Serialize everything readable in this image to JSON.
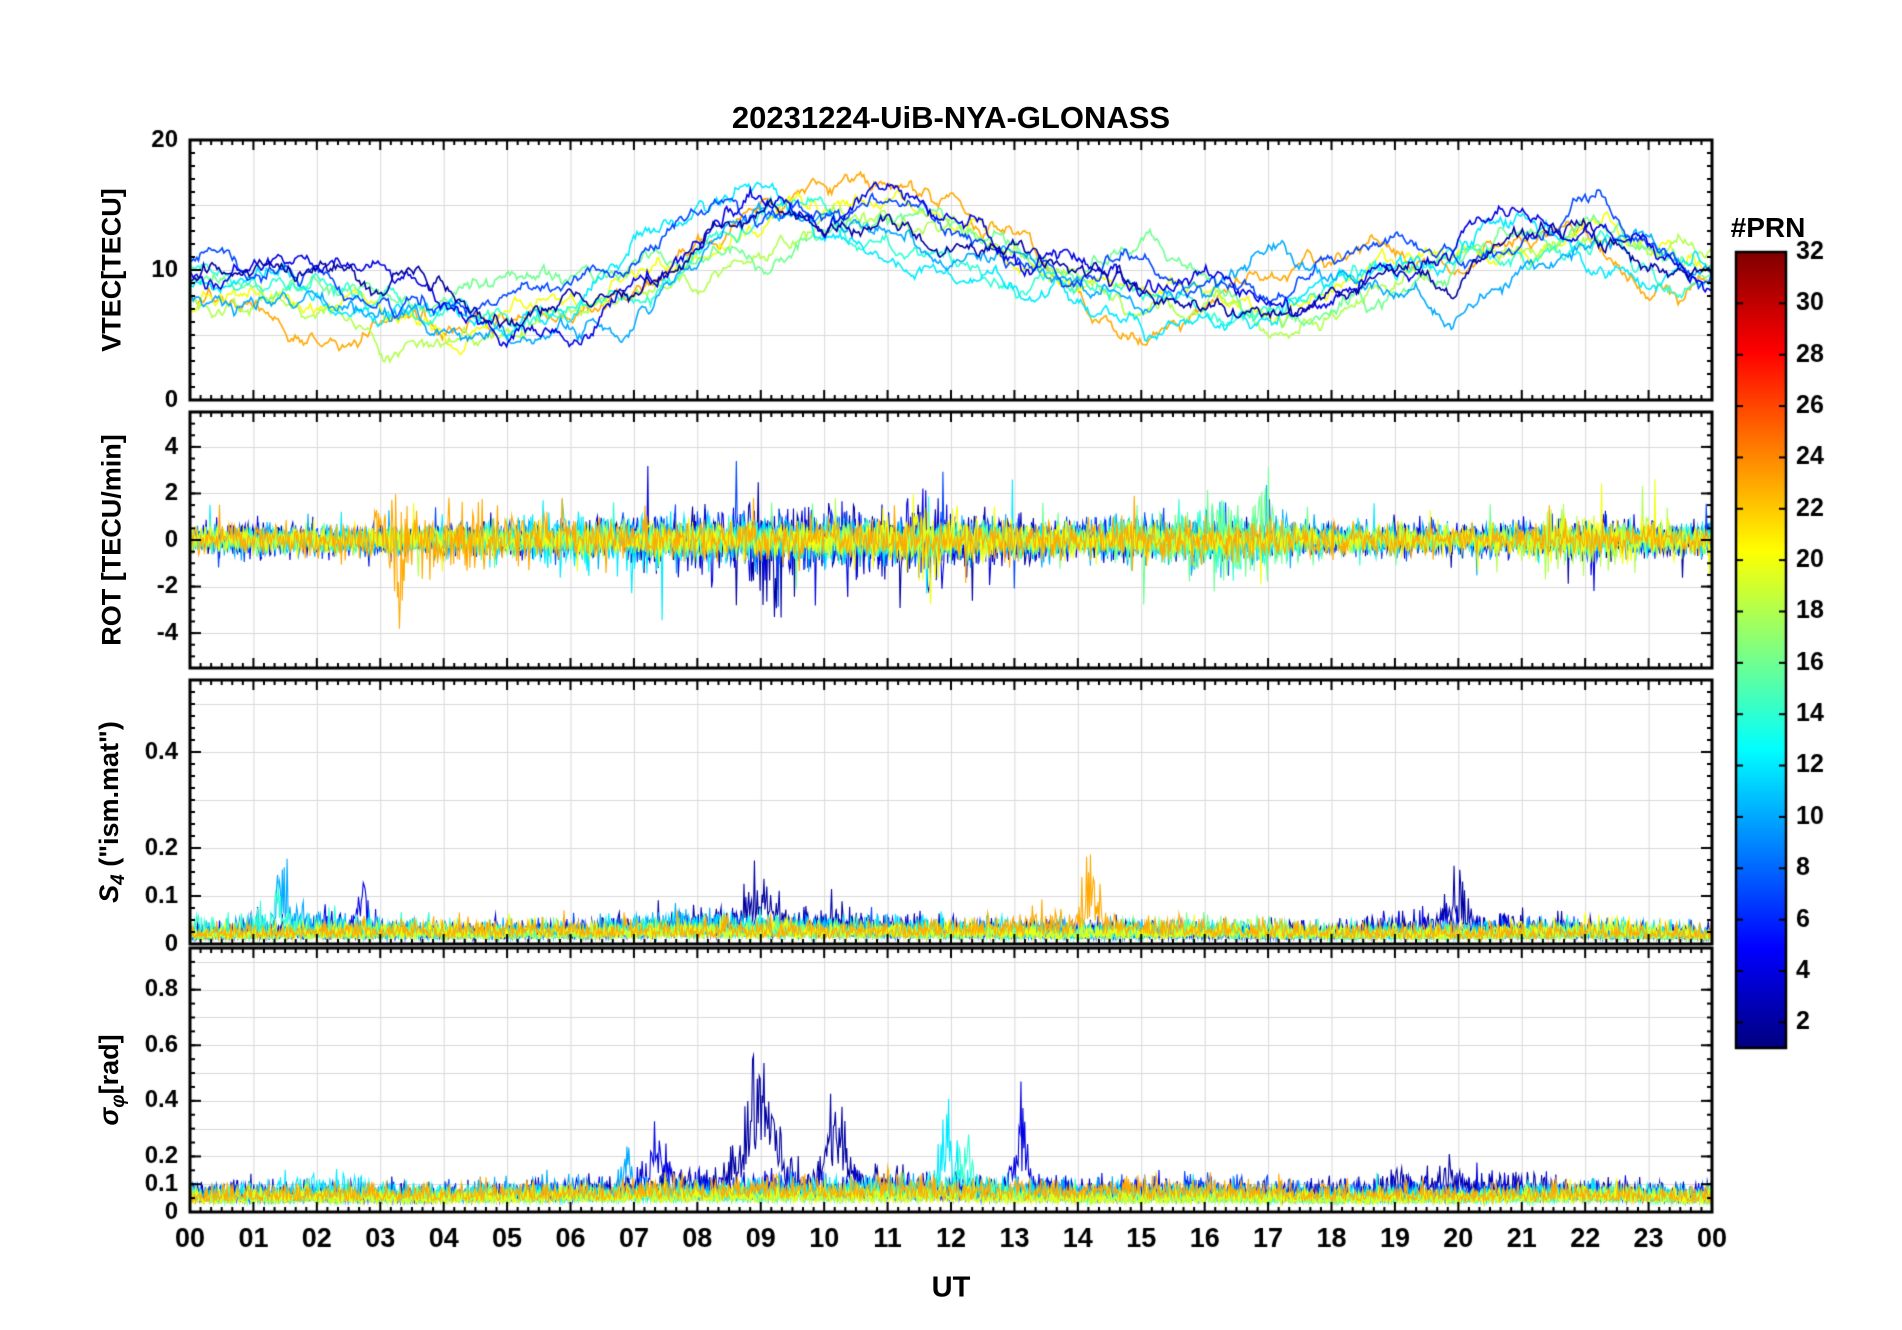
{
  "title": "20231224-UiB-NYA-GLONASS",
  "xlabel": "UT",
  "x_ticks": [
    "00",
    "01",
    "02",
    "03",
    "04",
    "05",
    "06",
    "07",
    "08",
    "09",
    "10",
    "11",
    "12",
    "13",
    "14",
    "15",
    "16",
    "17",
    "18",
    "19",
    "20",
    "21",
    "22",
    "23",
    "00"
  ],
  "colors": {
    "axis": "#000000",
    "grid": "#d9d9d9",
    "background": "#ffffff"
  },
  "colorbar": {
    "title": "#PRN",
    "min": 1,
    "max": 32,
    "ticks": [
      2,
      4,
      6,
      8,
      10,
      12,
      14,
      16,
      18,
      20,
      22,
      24,
      26,
      28,
      30,
      32
    ],
    "colormap": "jet"
  },
  "chart_data": [
    {
      "type": "line",
      "ylabel": "VTEC[TECU]",
      "ylim": [
        0,
        20
      ],
      "yticks": [
        0,
        10,
        20
      ],
      "ygrid": [
        5,
        10,
        15
      ],
      "yminor": 1,
      "style": {
        "kind": "vtec",
        "lw": 1.6,
        "order": "desc"
      },
      "x_hours_step": 1,
      "series": [
        {
          "prn": 2,
          "values": [
            9.5,
            10,
            8.5,
            7,
            6.5,
            6,
            7,
            8.5,
            12,
            14,
            13,
            15.5,
            13,
            11,
            9,
            8,
            7,
            6,
            7.5,
            9.5,
            10.5,
            12.5,
            14,
            10.5,
            9
          ]
        },
        {
          "prn": 4,
          "values": [
            10,
            11,
            10,
            8,
            7,
            6.5,
            7,
            9,
            13,
            15,
            14,
            18.5,
            15,
            12,
            10,
            9,
            8,
            7,
            8,
            10,
            12,
            15,
            16,
            12,
            10
          ]
        },
        {
          "prn": 7,
          "values": [
            11,
            9.5,
            8.5,
            7,
            6.5,
            6,
            8,
            10,
            14,
            13,
            15,
            14,
            12,
            10.5,
            9,
            8,
            7,
            6.5,
            8,
            10,
            11,
            13,
            15,
            11,
            9.5
          ]
        },
        {
          "prn": 10,
          "values": [
            8,
            7.5,
            7,
            6,
            5,
            4.5,
            6,
            9,
            12,
            14,
            13,
            12,
            11,
            9,
            8,
            7,
            9,
            11,
            10,
            9,
            8,
            10,
            12,
            10,
            9
          ]
        },
        {
          "prn": 12,
          "values": [
            9,
            8,
            7,
            6,
            5.5,
            5,
            7,
            10,
            13,
            15,
            12,
            11,
            10,
            8,
            7,
            6,
            5,
            7,
            9,
            10,
            11,
            13,
            11,
            10,
            10
          ]
        },
        {
          "prn": 14,
          "values": [
            10,
            9,
            8,
            7,
            6,
            6,
            7,
            9,
            11,
            12,
            13,
            11,
            9.5,
            8,
            7,
            6,
            5.5,
            6,
            8,
            9,
            10,
            11,
            12,
            10,
            9
          ]
        },
        {
          "prn": 16,
          "values": [
            9,
            8,
            9,
            7,
            6.5,
            7,
            8,
            9,
            10,
            11,
            12,
            13,
            11,
            9,
            8,
            10,
            7,
            5,
            6,
            8,
            9,
            10,
            11,
            9,
            8.5
          ]
        },
        {
          "prn": 18,
          "values": [
            8,
            7.5,
            7,
            6,
            6,
            7,
            8,
            9,
            10,
            12,
            14,
            13,
            12,
            10,
            9,
            8,
            7,
            6,
            7,
            9,
            10,
            11,
            13,
            11,
            9
          ]
        },
        {
          "prn": 20,
          "values": [
            7,
            6.5,
            6,
            5.5,
            5,
            6,
            7,
            8,
            10,
            13,
            15,
            16,
            13,
            11,
            9,
            8,
            7,
            5,
            6,
            8,
            9,
            10,
            13,
            12,
            9
          ]
        },
        {
          "prn": 23,
          "values": [
            8,
            7,
            6,
            5,
            4.5,
            5,
            6,
            8,
            11,
            13,
            14,
            15,
            12,
            9,
            6,
            5,
            7,
            8,
            9,
            10,
            11,
            12,
            13,
            10,
            9
          ]
        }
      ]
    },
    {
      "type": "line",
      "ylabel": "ROT [TECU/min]",
      "ylim": [
        -5.5,
        5.5
      ],
      "yticks": [
        -4,
        -2,
        0,
        2,
        4
      ],
      "ygrid": [
        -4,
        -2,
        0,
        2,
        4
      ],
      "yminor": 0.5,
      "style": {
        "kind": "noise",
        "lw": 1.1,
        "order": "asc",
        "gain": 0.7,
        "tail": 2.3,
        "tailmul": 2.8
      },
      "x_hours_step": 2,
      "series": [
        {
          "prn": 2,
          "env": [
            0.5,
            0.45,
            0.4,
            0.5,
            0.9,
            1.0,
            0.9,
            0.6,
            0.55,
            0.45,
            0.4,
            0.55,
            0.5
          ],
          "events": [
            {
              "x": 9.2,
              "w": 0.3,
              "a": 1.0
            }
          ]
        },
        {
          "prn": 4,
          "env": [
            0.55,
            0.5,
            0.45,
            0.55,
            1.0,
            1.2,
            0.9,
            0.6,
            0.5,
            0.45,
            0.5,
            0.6,
            0.55
          ],
          "events": [
            {
              "x": 11.6,
              "w": 0.2,
              "a": 1.2
            }
          ]
        },
        {
          "prn": 7,
          "env": [
            0.5,
            0.45,
            0.5,
            0.6,
            0.8,
            0.9,
            0.8,
            0.6,
            0.5,
            0.45,
            0.5,
            0.55,
            0.5
          ],
          "events": []
        },
        {
          "prn": 10,
          "env": [
            0.45,
            0.4,
            0.4,
            0.5,
            0.7,
            0.8,
            0.7,
            0.6,
            1.0,
            0.5,
            0.45,
            0.5,
            0.45
          ],
          "events": []
        },
        {
          "prn": 12,
          "env": [
            0.4,
            0.4,
            0.45,
            1.1,
            0.7,
            0.7,
            0.6,
            0.5,
            0.6,
            0.45,
            0.4,
            0.5,
            0.45
          ],
          "events": [
            {
              "x": 7.1,
              "w": 0.1,
              "a": 1.2
            }
          ]
        },
        {
          "prn": 14,
          "env": [
            0.35,
            0.35,
            0.4,
            0.45,
            0.55,
            0.6,
            0.55,
            0.5,
            1.2,
            0.4,
            0.35,
            0.4,
            0.35
          ],
          "events": []
        },
        {
          "prn": 16,
          "env": [
            0.35,
            0.4,
            0.4,
            0.45,
            0.5,
            0.55,
            0.5,
            0.45,
            1.4,
            0.45,
            0.35,
            0.4,
            0.35
          ],
          "events": [
            {
              "x": 16.9,
              "w": 0.15,
              "a": 1.6
            }
          ]
        },
        {
          "prn": 18,
          "env": [
            0.35,
            0.35,
            0.4,
            0.4,
            0.5,
            0.5,
            0.45,
            0.4,
            0.4,
            0.35,
            0.4,
            0.85,
            0.4
          ],
          "events": [
            {
              "x": 21.5,
              "w": 0.15,
              "a": 1.2
            }
          ]
        },
        {
          "prn": 20,
          "env": [
            0.4,
            0.4,
            0.45,
            0.5,
            0.55,
            0.6,
            1.0,
            0.5,
            0.45,
            0.4,
            0.4,
            0.7,
            0.45
          ],
          "events": [
            {
              "x": 11.6,
              "w": 0.15,
              "a": 1.0
            }
          ]
        },
        {
          "prn": 23,
          "env": [
            0.4,
            0.5,
            1.3,
            0.6,
            0.55,
            0.6,
            0.55,
            0.7,
            0.65,
            0.5,
            0.45,
            0.5,
            0.4
          ],
          "events": [
            {
              "x": 3.3,
              "w": 0.15,
              "a": 1.6
            }
          ]
        }
      ]
    },
    {
      "type": "line",
      "ylabel_pre": "S",
      "ylabel_sub": "4",
      "ylabel_post": " (\"ism.mat\")",
      "ylim": [
        0,
        0.55
      ],
      "yticks": [
        0,
        0.1,
        0.2,
        0.4
      ],
      "ygrid": [
        0.1,
        0.2,
        0.3,
        0.4,
        0.5
      ],
      "yminor": 0.025,
      "style": {
        "kind": "pos",
        "lw": 1.1,
        "order": "asc",
        "base": 0.4,
        "var": 0.55,
        "tail": 2.6,
        "tailmul": 1.5,
        "floor": 0.004
      },
      "x_hours_step": 2,
      "series": [
        {
          "prn": 2,
          "env": [
            0.025,
            0.03,
            0.025,
            0.03,
            0.05,
            0.05,
            0.035,
            0.03,
            0.03,
            0.03,
            0.045,
            0.035,
            0.025
          ],
          "events": [
            {
              "x": 9.0,
              "w": 0.3,
              "a": 0.06
            },
            {
              "x": 20.0,
              "w": 0.3,
              "a": 0.05
            }
          ]
        },
        {
          "prn": 4,
          "env": [
            0.025,
            0.045,
            0.03,
            0.03,
            0.035,
            0.045,
            0.035,
            0.03,
            0.03,
            0.03,
            0.045,
            0.03,
            0.025
          ],
          "events": [
            {
              "x": 2.7,
              "w": 0.12,
              "a": 0.07
            }
          ]
        },
        {
          "prn": 7,
          "env": [
            0.02,
            0.025,
            0.03,
            0.03,
            0.035,
            0.03,
            0.03,
            0.025,
            0.025,
            0.025,
            0.03,
            0.03,
            0.02
          ],
          "events": []
        },
        {
          "prn": 10,
          "env": [
            0.03,
            0.05,
            0.03,
            0.03,
            0.045,
            0.04,
            0.03,
            0.03,
            0.03,
            0.025,
            0.03,
            0.03,
            0.025
          ],
          "events": [
            {
              "x": 1.5,
              "w": 0.15,
              "a": 0.08
            }
          ]
        },
        {
          "prn": 12,
          "env": [
            0.025,
            0.03,
            0.025,
            0.03,
            0.045,
            0.04,
            0.035,
            0.03,
            0.03,
            0.025,
            0.025,
            0.03,
            0.025
          ],
          "events": []
        },
        {
          "prn": 14,
          "env": [
            0.04,
            0.045,
            0.03,
            0.025,
            0.035,
            0.03,
            0.03,
            0.025,
            0.03,
            0.025,
            0.025,
            0.03,
            0.025
          ],
          "events": [
            {
              "x": 1.4,
              "w": 0.1,
              "a": 0.08
            }
          ]
        },
        {
          "prn": 16,
          "env": [
            0.02,
            0.025,
            0.03,
            0.03,
            0.03,
            0.03,
            0.03,
            0.03,
            0.04,
            0.03,
            0.025,
            0.025,
            0.02
          ],
          "events": []
        },
        {
          "prn": 18,
          "env": [
            0.02,
            0.025,
            0.025,
            0.025,
            0.03,
            0.03,
            0.025,
            0.025,
            0.03,
            0.025,
            0.02,
            0.025,
            0.02
          ],
          "events": []
        },
        {
          "prn": 20,
          "env": [
            0.025,
            0.03,
            0.03,
            0.03,
            0.03,
            0.03,
            0.03,
            0.025,
            0.03,
            0.025,
            0.025,
            0.04,
            0.025
          ],
          "events": []
        },
        {
          "prn": 23,
          "env": [
            0.025,
            0.03,
            0.035,
            0.035,
            0.035,
            0.03,
            0.035,
            0.05,
            0.035,
            0.03,
            0.025,
            0.03,
            0.025
          ],
          "events": [
            {
              "x": 14.2,
              "w": 0.12,
              "a": 0.09
            }
          ]
        }
      ]
    },
    {
      "type": "line",
      "ylabel_pre": "σ",
      "ylabel_sub": "φ",
      "ylabel_post": "[rad]",
      "ylim": [
        0,
        0.95
      ],
      "yticks": [
        0,
        0.1,
        0.2,
        0.4,
        0.6,
        0.8
      ],
      "ygrid": [
        0.1,
        0.2,
        0.3,
        0.4,
        0.5,
        0.6,
        0.7,
        0.8,
        0.9
      ],
      "yminor": 0.05,
      "style": {
        "kind": "pos",
        "lw": 1.1,
        "order": "asc",
        "base": 0.5,
        "var": 0.4,
        "tail": 2.6,
        "tailmul": 1.5,
        "floor": 0.01
      },
      "x_hours_step": 2,
      "series": [
        {
          "prn": 2,
          "env": [
            0.07,
            0.08,
            0.07,
            0.08,
            0.13,
            0.12,
            0.1,
            0.08,
            0.08,
            0.08,
            0.13,
            0.09,
            0.07
          ],
          "events": [
            {
              "x": 9.0,
              "w": 0.3,
              "a": 0.35
            },
            {
              "x": 10.2,
              "w": 0.2,
              "a": 0.22
            }
          ]
        },
        {
          "prn": 4,
          "env": [
            0.08,
            0.08,
            0.07,
            0.09,
            0.12,
            0.1,
            0.09,
            0.1,
            0.09,
            0.08,
            0.1,
            0.09,
            0.08
          ],
          "events": [
            {
              "x": 13.1,
              "w": 0.15,
              "a": 0.18
            },
            {
              "x": 7.4,
              "w": 0.2,
              "a": 0.12
            }
          ]
        },
        {
          "prn": 7,
          "env": [
            0.07,
            0.07,
            0.08,
            0.08,
            0.09,
            0.09,
            0.08,
            0.08,
            0.11,
            0.08,
            0.08,
            0.08,
            0.07
          ],
          "events": []
        },
        {
          "prn": 10,
          "env": [
            0.07,
            0.08,
            0.07,
            0.1,
            0.08,
            0.08,
            0.1,
            0.08,
            0.08,
            0.07,
            0.07,
            0.08,
            0.07
          ],
          "events": [
            {
              "x": 6.9,
              "w": 0.1,
              "a": 0.12
            }
          ]
        },
        {
          "prn": 12,
          "env": [
            0.07,
            0.11,
            0.07,
            0.07,
            0.08,
            0.1,
            0.1,
            0.08,
            0.07,
            0.07,
            0.07,
            0.08,
            0.07
          ],
          "events": [
            {
              "x": 11.95,
              "w": 0.15,
              "a": 0.18
            }
          ]
        },
        {
          "prn": 14,
          "env": [
            0.06,
            0.07,
            0.07,
            0.07,
            0.08,
            0.08,
            0.09,
            0.07,
            0.07,
            0.06,
            0.06,
            0.07,
            0.06
          ],
          "events": [
            {
              "x": 12.2,
              "w": 0.15,
              "a": 0.15
            }
          ]
        },
        {
          "prn": 16,
          "env": [
            0.06,
            0.06,
            0.07,
            0.07,
            0.07,
            0.07,
            0.08,
            0.07,
            0.07,
            0.06,
            0.06,
            0.07,
            0.06
          ],
          "events": []
        },
        {
          "prn": 18,
          "env": [
            0.06,
            0.06,
            0.06,
            0.07,
            0.07,
            0.07,
            0.07,
            0.06,
            0.06,
            0.06,
            0.06,
            0.07,
            0.06
          ],
          "events": []
        },
        {
          "prn": 20,
          "env": [
            0.06,
            0.07,
            0.06,
            0.07,
            0.07,
            0.07,
            0.07,
            0.06,
            0.07,
            0.06,
            0.06,
            0.08,
            0.06
          ],
          "events": []
        },
        {
          "prn": 23,
          "env": [
            0.07,
            0.08,
            0.08,
            0.08,
            0.1,
            0.1,
            0.09,
            0.09,
            0.1,
            0.08,
            0.07,
            0.08,
            0.07
          ],
          "events": []
        }
      ]
    }
  ]
}
